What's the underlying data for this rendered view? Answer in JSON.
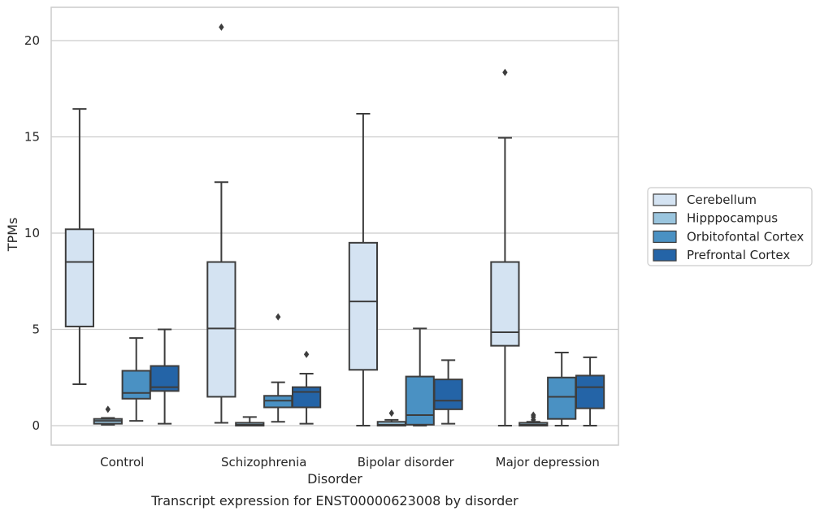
{
  "chart_data": {
    "type": "boxplot",
    "title": "",
    "caption": "Transcript expression for ENST00000623008 by disorder",
    "xlabel": "Disorder",
    "ylabel": "TPMs",
    "ylim": [
      -1,
      21.8
    ],
    "yticks": [
      0,
      5,
      10,
      15,
      20
    ],
    "grid": "horizontal",
    "legend_position": "right",
    "categories": [
      "Control",
      "Schizophrenia",
      "Bipolar disorder",
      "Major depression"
    ],
    "series": [
      {
        "name": "Cerebellum",
        "color": "#d4e3f2",
        "boxes": [
          {
            "whislo": 2.15,
            "q1": 5.15,
            "med": 8.5,
            "q3": 10.2,
            "whishi": 16.45,
            "fliers": []
          },
          {
            "whislo": 0.15,
            "q1": 1.5,
            "med": 5.05,
            "q3": 8.5,
            "whishi": 12.65,
            "fliers": [
              20.7
            ]
          },
          {
            "whislo": 0.0,
            "q1": 2.9,
            "med": 6.45,
            "q3": 9.5,
            "whishi": 16.2,
            "fliers": []
          },
          {
            "whislo": 0.0,
            "q1": 4.15,
            "med": 4.85,
            "q3": 8.5,
            "whishi": 14.95,
            "fliers": [
              18.35
            ]
          }
        ]
      },
      {
        "name": "Hipppocampus",
        "color": "#9ac5de",
        "boxes": [
          {
            "whislo": 0.05,
            "q1": 0.1,
            "med": 0.25,
            "q3": 0.35,
            "whishi": 0.4,
            "fliers": [
              0.85
            ]
          },
          {
            "whislo": 0.0,
            "q1": 0.0,
            "med": 0.05,
            "q3": 0.15,
            "whishi": 0.45,
            "fliers": []
          },
          {
            "whislo": 0.0,
            "q1": 0.0,
            "med": 0.05,
            "q3": 0.2,
            "whishi": 0.3,
            "fliers": [
              0.65
            ]
          },
          {
            "whislo": 0.0,
            "q1": 0.0,
            "med": 0.05,
            "q3": 0.15,
            "whishi": 0.2,
            "fliers": [
              0.3,
              0.45,
              0.55
            ]
          }
        ]
      },
      {
        "name": "Orbitofontal Cortex",
        "color": "#4a91c3",
        "boxes": [
          {
            "whislo": 0.25,
            "q1": 1.4,
            "med": 1.7,
            "q3": 2.85,
            "whishi": 4.55,
            "fliers": []
          },
          {
            "whislo": 0.2,
            "q1": 0.95,
            "med": 1.3,
            "q3": 1.55,
            "whishi": 2.25,
            "fliers": [
              5.65
            ]
          },
          {
            "whislo": 0.0,
            "q1": 0.05,
            "med": 0.55,
            "q3": 2.55,
            "whishi": 5.05,
            "fliers": []
          },
          {
            "whislo": 0.0,
            "q1": 0.35,
            "med": 1.5,
            "q3": 2.5,
            "whishi": 3.8,
            "fliers": []
          }
        ]
      },
      {
        "name": "Prefrontal Cortex",
        "color": "#2464a7",
        "boxes": [
          {
            "whislo": 0.1,
            "q1": 1.8,
            "med": 2.0,
            "q3": 3.1,
            "whishi": 5.0,
            "fliers": []
          },
          {
            "whislo": 0.1,
            "q1": 0.95,
            "med": 1.75,
            "q3": 2.0,
            "whishi": 2.7,
            "fliers": [
              3.7
            ]
          },
          {
            "whislo": 0.1,
            "q1": 0.85,
            "med": 1.3,
            "q3": 2.4,
            "whishi": 3.4,
            "fliers": []
          },
          {
            "whislo": 0.0,
            "q1": 0.9,
            "med": 2.0,
            "q3": 2.6,
            "whishi": 3.55,
            "fliers": []
          }
        ]
      }
    ]
  }
}
